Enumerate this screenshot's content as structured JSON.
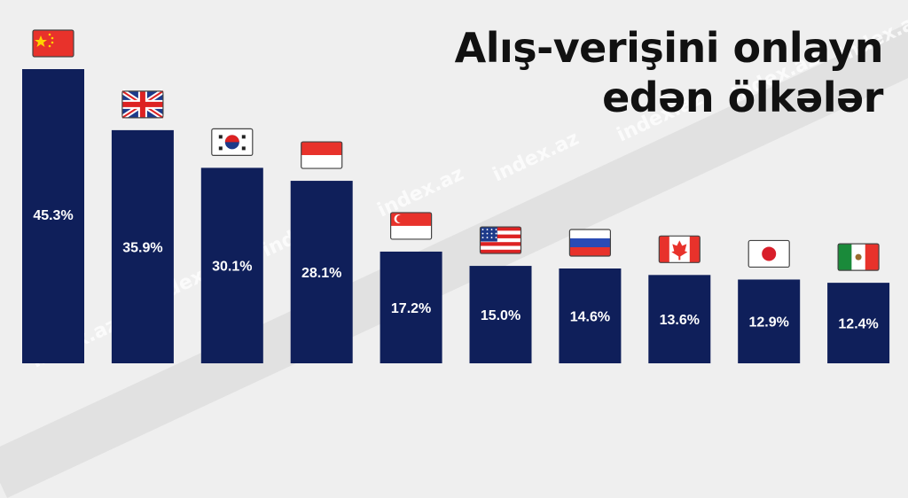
{
  "title_lines": [
    "Alış-verişini onlayn",
    "edən ölkələr"
  ],
  "watermark": "index.az",
  "colors": {
    "bar": "#0f1f5a",
    "background": "#efefef",
    "label": "#ffffff"
  },
  "chart_data": {
    "type": "bar",
    "title": "Alış-verişini onlayn edən ölkələr",
    "categories": [
      "China",
      "United Kingdom",
      "South Korea",
      "Indonesia",
      "Singapore",
      "United States",
      "Russia",
      "Canada",
      "Japan",
      "Mexico"
    ],
    "values": [
      45.3,
      35.9,
      30.1,
      28.1,
      17.2,
      15.0,
      14.6,
      13.6,
      12.9,
      12.4
    ],
    "value_labels": [
      "45.3%",
      "35.9%",
      "30.1%",
      "28.1%",
      "17.2%",
      "15.0%",
      "14.6%",
      "13.6%",
      "12.9%",
      "12.4%"
    ],
    "flag_icons": [
      "flag-china-icon",
      "flag-uk-icon",
      "flag-south-korea-icon",
      "flag-indonesia-icon",
      "flag-singapore-icon",
      "flag-usa-icon",
      "flag-russia-icon",
      "flag-canada-icon",
      "flag-japan-icon",
      "flag-mexico-icon"
    ],
    "xlabel": "",
    "ylabel": "",
    "ylim": [
      0,
      45.3
    ],
    "grid": false
  }
}
